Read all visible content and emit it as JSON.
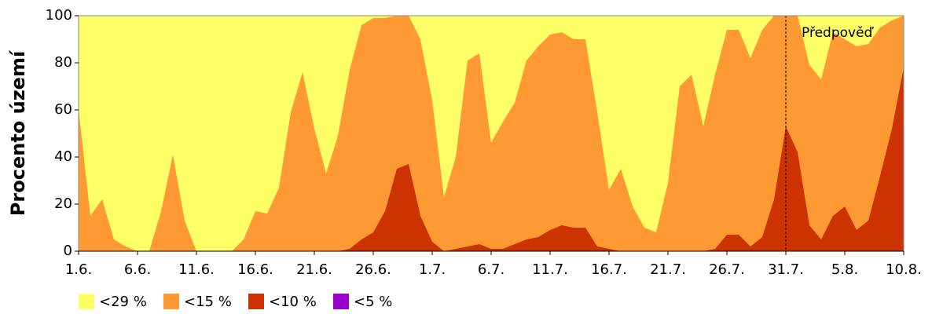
{
  "chart_data": {
    "type": "area",
    "ylabel": "Procento území",
    "categories": [
      "1.6.",
      null,
      null,
      null,
      null,
      "6.6.",
      null,
      null,
      null,
      null,
      "11.6.",
      null,
      null,
      null,
      null,
      "16.6.",
      null,
      null,
      null,
      null,
      "21.6.",
      null,
      null,
      null,
      null,
      "26.6.",
      null,
      null,
      null,
      null,
      "1.7.",
      null,
      null,
      null,
      null,
      "6.7.",
      null,
      null,
      null,
      null,
      "11.7.",
      null,
      null,
      null,
      null,
      "16.7.",
      null,
      null,
      null,
      null,
      "21.7.",
      null,
      null,
      null,
      null,
      "26.7.",
      null,
      null,
      null,
      null,
      "31.7.",
      null,
      null,
      null,
      null,
      "5.8.",
      null,
      null,
      null,
      null,
      "10.8."
    ],
    "series": [
      {
        "name": "<29 %",
        "color": "#ffff66",
        "values": [
          100,
          100,
          100,
          100,
          100,
          100,
          100,
          100,
          100,
          100,
          100,
          100,
          100,
          100,
          100,
          100,
          100,
          100,
          100,
          100,
          100,
          100,
          100,
          100,
          100,
          100,
          100,
          100,
          100,
          100,
          100,
          100,
          100,
          100,
          100,
          100,
          100,
          100,
          100,
          100,
          100,
          100,
          100,
          100,
          100,
          100,
          100,
          100,
          100,
          100,
          100,
          100,
          100,
          100,
          100,
          100,
          100,
          100,
          100,
          100,
          100,
          100,
          100,
          100,
          100,
          100,
          100,
          100,
          100,
          100,
          100
        ]
      },
      {
        "name": "<15 %",
        "color": "#ff9933",
        "values": [
          60,
          15,
          22,
          5,
          2,
          0,
          0,
          17,
          41,
          13,
          0,
          0,
          0,
          0,
          5,
          17,
          16,
          27,
          59,
          76,
          52,
          33,
          49,
          77,
          96,
          99,
          99,
          100,
          100,
          90,
          64,
          23,
          40,
          81,
          84,
          46,
          55,
          63,
          81,
          87,
          92,
          93,
          90,
          90,
          59,
          26,
          35,
          19,
          10,
          8,
          29,
          70,
          75,
          53,
          75,
          94,
          94,
          82,
          94,
          100,
          100,
          100,
          79,
          73,
          93,
          90,
          87,
          88,
          95,
          98,
          100
        ]
      },
      {
        "name": "<10 %",
        "color": "#cc3300",
        "values": [
          0,
          0,
          0,
          0,
          0,
          0,
          0,
          0,
          0,
          0,
          0,
          0,
          0,
          0,
          0,
          0,
          0,
          0,
          0,
          0,
          0,
          0,
          0,
          1,
          5,
          8,
          17,
          35,
          37,
          15,
          4,
          0,
          1,
          2,
          3,
          1,
          1,
          3,
          5,
          6,
          9,
          11,
          10,
          10,
          2,
          1,
          0,
          0,
          0,
          0,
          0,
          0,
          0,
          0,
          1,
          7,
          7,
          2,
          6,
          22,
          53,
          42,
          11,
          5,
          15,
          19,
          9,
          13,
          32,
          52,
          78
        ]
      },
      {
        "name": "<5 %",
        "color": "#9900cc",
        "values": [
          0,
          0,
          0,
          0,
          0,
          0,
          0,
          0,
          0,
          0,
          0,
          0,
          0,
          0,
          0,
          0,
          0,
          0,
          0,
          0,
          0,
          0,
          0,
          0,
          0,
          0,
          0,
          0,
          0,
          0,
          0,
          0,
          0,
          0,
          0,
          0,
          0,
          0,
          0,
          0,
          0,
          0,
          0,
          0,
          0,
          0,
          0,
          0,
          0,
          0,
          0,
          0,
          0,
          0,
          0,
          0,
          0,
          0,
          0,
          0,
          0,
          0,
          0,
          0,
          0,
          0,
          0,
          0,
          0,
          0,
          0
        ]
      }
    ],
    "ylim": [
      0,
      100
    ],
    "yticks": [
      0,
      20,
      40,
      60,
      80,
      100
    ],
    "grid": false,
    "annotation": {
      "text": "Předpověď",
      "at": 60
    }
  }
}
